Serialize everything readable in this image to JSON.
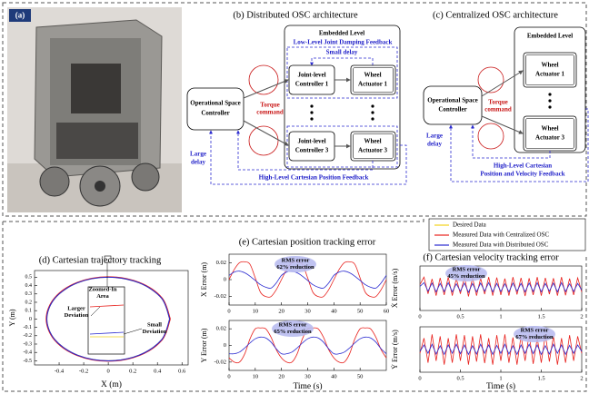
{
  "panel_a": {
    "label": "(a)"
  },
  "diagram_b": {
    "title": "(b) Distributed OSC architecture",
    "embedded_level": "Embedded Level",
    "low_level_feedback": "Low-Level Joint Damping Feedback",
    "small_delay": "Small delay",
    "joint_controller_1": [
      "Joint-level",
      "Controller 1"
    ],
    "wheel_actuator_1": [
      "Wheel",
      "Actuator 1"
    ],
    "joint_controller_3": [
      "Joint-level",
      "Controller 3"
    ],
    "wheel_actuator_3": [
      "Wheel",
      "Actuator 3"
    ],
    "osc": [
      "Operational Space",
      "Controller"
    ],
    "torque_command": [
      "Torque",
      "command"
    ],
    "large_delay": [
      "Large",
      "delay"
    ],
    "high_level_feedback": "High-Level Cartesian Position Feedback"
  },
  "diagram_c": {
    "title": "(c) Centralized OSC architecture",
    "embedded_level": "Embedded Level",
    "wheel_actuator_1": [
      "Wheel",
      "Actuator 1"
    ],
    "wheel_actuator_3": [
      "Wheel",
      "Actuator 3"
    ],
    "osc": [
      "Operational Space",
      "Controller"
    ],
    "torque_command": [
      "Torque",
      "command"
    ],
    "large_delay": [
      "Large",
      "delay"
    ],
    "high_level_feedback": [
      "High-Level Cartesian",
      "Position and Velocity Feedback"
    ]
  },
  "chart_data": [
    {
      "type": "line",
      "title": "(d) Cartesian trajectory tracking",
      "x_label": "X (m)",
      "y_label": "Y (m)",
      "xlim": [
        -0.6,
        0.65
      ],
      "xticks": [
        -0.4,
        -0.2,
        0,
        0.2,
        0.4,
        0.6
      ],
      "ylim": [
        -0.55,
        0.58
      ],
      "yticks": [
        -0.5,
        -0.4,
        -0.3,
        -0.2,
        -0.1,
        0,
        0.1,
        0.2,
        0.3,
        0.4,
        0.5
      ],
      "annotations": [
        [
          "Zoomed-In",
          "Area"
        ],
        [
          "Larger",
          "Deviation"
        ],
        [
          "Small",
          "Deviation"
        ]
      ],
      "series": [
        {
          "name": "Desired Data",
          "color": "#f2d21b",
          "x": [
            0.5,
            0.433,
            0.25,
            0,
            -0.25,
            -0.433,
            -0.5,
            -0.433,
            -0.25,
            0,
            0.25,
            0.433,
            0.5
          ],
          "values": [
            0,
            0.25,
            0.433,
            0.5,
            0.433,
            0.25,
            0,
            -0.25,
            -0.433,
            -0.5,
            -0.433,
            -0.25,
            0
          ]
        },
        {
          "name": "Measured Data with Centralized OSC",
          "color": "#e8211d",
          "x": [
            0.505,
            0.437,
            0.253,
            0,
            -0.253,
            -0.437,
            -0.505,
            -0.437,
            -0.253,
            0,
            0.253,
            0.437,
            0.505
          ],
          "values": [
            0,
            0.253,
            0.437,
            0.505,
            0.437,
            0.253,
            0,
            -0.253,
            -0.437,
            -0.505,
            -0.437,
            -0.253,
            0
          ]
        },
        {
          "name": "Measured Data with Distributed OSC",
          "color": "#2a2ad0",
          "x": [
            0.5,
            0.433,
            0.25,
            0,
            -0.25,
            -0.433,
            -0.5,
            -0.433,
            -0.25,
            0,
            0.25,
            0.433,
            0.5
          ],
          "values": [
            0,
            0.25,
            0.433,
            0.5,
            0.433,
            0.25,
            0,
            -0.25,
            -0.433,
            -0.5,
            -0.433,
            -0.25,
            0
          ]
        }
      ]
    },
    {
      "type": "line",
      "title": "(e) Cartesian position tracking error",
      "y_label": "X Error (m)",
      "x": [
        0,
        2,
        4,
        6,
        8,
        10,
        12,
        14,
        16,
        18,
        20,
        22,
        24,
        26,
        28,
        30,
        32,
        34,
        36,
        38,
        40,
        42,
        44,
        46,
        48,
        50,
        52,
        54,
        56,
        58,
        60
      ],
      "xlim": [
        0,
        60
      ],
      "xticks": [
        0,
        10,
        20,
        30,
        40,
        50,
        60
      ],
      "ylim": [
        -0.03,
        0.03
      ],
      "yticks": [
        -0.02,
        0,
        0.02
      ],
      "annotations": [
        [
          "RMS error",
          "62% reduction"
        ]
      ],
      "series": [
        {
          "color": "#e8211d",
          "values": [
            0,
            0.012,
            0.02,
            0.021,
            0.018,
            0.002,
            -0.015,
            -0.02,
            -0.02,
            -0.012,
            0,
            0.012,
            0.02,
            0.021,
            0.018,
            0.002,
            -0.015,
            -0.02,
            -0.02,
            -0.012,
            0,
            0.012,
            0.02,
            0.021,
            0.018,
            0.002,
            -0.015,
            -0.02,
            -0.02,
            -0.012,
            0
          ]
        },
        {
          "color": "#2a2ad0",
          "values": [
            0.005,
            0.009,
            0.01,
            0.008,
            0.004,
            -0.001,
            -0.006,
            -0.009,
            -0.01,
            -0.004,
            0.005,
            0.009,
            0.01,
            0.008,
            0.004,
            -0.001,
            -0.006,
            -0.009,
            -0.01,
            -0.004,
            0.005,
            0.009,
            0.01,
            0.008,
            0.004,
            -0.001,
            -0.006,
            -0.009,
            -0.01,
            -0.004,
            0.005
          ]
        }
      ]
    },
    {
      "type": "line",
      "x_label": "Time (s)",
      "y_label": "Y Error (m)",
      "x": [
        0,
        2,
        4,
        6,
        8,
        10,
        12,
        14,
        16,
        18,
        20,
        22,
        24,
        26,
        28,
        30,
        32,
        34,
        36,
        38,
        40,
        42,
        44,
        46,
        48,
        50,
        52,
        54,
        56,
        58,
        60
      ],
      "xlim": [
        0,
        60
      ],
      "xticks": [
        0,
        10,
        20,
        30,
        40,
        50
      ],
      "ylim": [
        -0.03,
        0.03
      ],
      "yticks": [
        -0.02,
        0,
        0.02
      ],
      "annotations": [
        [
          "RMS error",
          "65% reduction"
        ]
      ],
      "series": [
        {
          "color": "#e8211d",
          "values": [
            -0.015,
            -0.02,
            -0.02,
            -0.01,
            0.008,
            0.02,
            0.021,
            0.02,
            0.01,
            -0.005,
            -0.015,
            -0.02,
            -0.02,
            -0.01,
            0.008,
            0.02,
            0.021,
            0.02,
            0.01,
            -0.005,
            -0.015,
            -0.02,
            -0.02,
            -0.01,
            0.008,
            0.02,
            0.021,
            0.02,
            0.01,
            -0.005,
            -0.015
          ]
        },
        {
          "color": "#2a2ad0",
          "values": [
            -0.01,
            -0.01,
            -0.008,
            -0.003,
            0.003,
            0.008,
            0.01,
            0.009,
            0.004,
            -0.004,
            -0.01,
            -0.01,
            -0.008,
            -0.003,
            0.003,
            0.008,
            0.01,
            0.009,
            0.004,
            -0.004,
            -0.01,
            -0.01,
            -0.008,
            -0.003,
            0.003,
            0.008,
            0.01,
            0.009,
            0.004,
            -0.004,
            -0.01
          ]
        }
      ]
    },
    {
      "type": "line",
      "title": "(f) Cartesian velocity tracking error",
      "y_label": "Ẋ Error (m/s)",
      "x": [
        0,
        0.05,
        0.1,
        0.15,
        0.2,
        0.25,
        0.3,
        0.35,
        0.4,
        0.45,
        0.5,
        0.55,
        0.6,
        0.65,
        0.7,
        0.75,
        0.8,
        0.85,
        0.9,
        0.95,
        1,
        1.05,
        1.1,
        1.15,
        1.2,
        1.25,
        1.3,
        1.35,
        1.4,
        1.45,
        1.5,
        1.55,
        1.6,
        1.65,
        1.7,
        1.75,
        1.8,
        1.85,
        1.9,
        1.95,
        2
      ],
      "xlim": [
        0,
        2
      ],
      "xticks": [
        0,
        0.5,
        1,
        1.5,
        2
      ],
      "ylim": [
        -0.06,
        0.06
      ],
      "annotations": [
        [
          "RMS error",
          "45% reduction"
        ]
      ],
      "series": [
        {
          "color": "#e8211d",
          "values": [
            0.01,
            0.03,
            -0.015,
            0.025,
            -0.02,
            0.028,
            -0.018,
            0.03,
            -0.02,
            0.026,
            -0.015,
            0.03,
            -0.022,
            0.028,
            -0.02,
            0.027,
            -0.016,
            0.03,
            -0.02,
            0.029,
            -0.018,
            0.026,
            -0.02,
            0.03,
            -0.017,
            0.028,
            -0.021,
            0.027,
            -0.018,
            0.03,
            -0.02,
            0.028,
            -0.016,
            0.027,
            -0.02,
            0.03,
            -0.019,
            0.026,
            -0.018,
            0.028,
            -0.01
          ]
        },
        {
          "color": "#2a2ad0",
          "values": [
            0.005,
            0.015,
            -0.008,
            0.014,
            -0.01,
            0.013,
            -0.009,
            0.015,
            -0.01,
            0.012,
            -0.008,
            0.014,
            -0.011,
            0.013,
            -0.01,
            0.014,
            -0.008,
            0.015,
            -0.01,
            0.013,
            -0.009,
            0.012,
            -0.01,
            0.014,
            -0.008,
            0.013,
            -0.01,
            0.014,
            -0.009,
            0.015,
            -0.01,
            0.013,
            -0.008,
            0.014,
            -0.01,
            0.015,
            -0.009,
            0.012,
            -0.009,
            0.013,
            -0.005
          ]
        }
      ]
    },
    {
      "type": "line",
      "x_label": "Time (s)",
      "y_label": "Ẏ Error (m/s)",
      "x": [
        0,
        0.05,
        0.1,
        0.15,
        0.2,
        0.25,
        0.3,
        0.35,
        0.4,
        0.45,
        0.5,
        0.55,
        0.6,
        0.65,
        0.7,
        0.75,
        0.8,
        0.85,
        0.9,
        0.95,
        1,
        1.05,
        1.1,
        1.15,
        1.2,
        1.25,
        1.3,
        1.35,
        1.4,
        1.45,
        1.5,
        1.55,
        1.6,
        1.65,
        1.7,
        1.75,
        1.8,
        1.85,
        1.9,
        1.95,
        2
      ],
      "xlim": [
        0,
        2
      ],
      "xticks": [
        0,
        0.5,
        1,
        1.5,
        2
      ],
      "ylim": [
        -0.06,
        0.06
      ],
      "annotations": [
        [
          "RMS error",
          "67% reduction"
        ]
      ],
      "series": [
        {
          "color": "#e8211d",
          "values": [
            -0.01,
            0.03,
            -0.035,
            0.04,
            -0.03,
            0.035,
            -0.04,
            0.03,
            -0.035,
            0.04,
            -0.03,
            0.038,
            -0.04,
            0.035,
            -0.032,
            0.04,
            -0.036,
            0.03,
            -0.04,
            0.038,
            -0.03,
            0.04,
            -0.035,
            0.032,
            -0.04,
            0.036,
            -0.03,
            0.04,
            -0.038,
            0.03,
            -0.035,
            0.04,
            -0.032,
            0.036,
            -0.04,
            0.03,
            -0.035,
            0.038,
            -0.03,
            0.035,
            -0.01
          ]
        },
        {
          "color": "#2a2ad0",
          "values": [
            -0.005,
            0.012,
            -0.01,
            0.014,
            -0.012,
            0.01,
            -0.013,
            0.012,
            -0.01,
            0.014,
            -0.011,
            0.012,
            -0.013,
            0.01,
            -0.012,
            0.014,
            -0.01,
            0.012,
            -0.013,
            0.011,
            -0.01,
            0.014,
            -0.012,
            0.01,
            -0.013,
            0.012,
            -0.01,
            0.014,
            -0.011,
            0.012,
            -0.013,
            0.01,
            -0.012,
            0.014,
            -0.01,
            0.012,
            -0.013,
            0.011,
            -0.01,
            0.012,
            -0.005
          ]
        }
      ]
    }
  ]
}
